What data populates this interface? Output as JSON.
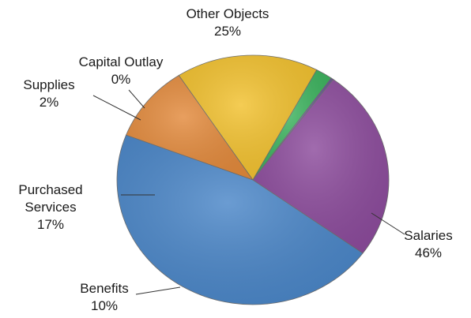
{
  "chart_data": {
    "type": "pie",
    "title": "",
    "slices": [
      {
        "label": "Salaries",
        "pct_label": "46%",
        "value": 46,
        "color": "#4a86c8"
      },
      {
        "label": "Benefits",
        "pct_label": "10%",
        "value": 10,
        "color": "#e38a3c"
      },
      {
        "label": "Purchased Services",
        "label_lines": [
          "Purchased",
          "Services"
        ],
        "pct_label": "17%",
        "value": 17,
        "color": "#f2c12e"
      },
      {
        "label": "Supplies",
        "pct_label": "2%",
        "value": 2,
        "color": "#3cb35e"
      },
      {
        "label": "Capital Outlay",
        "pct_label": "0%",
        "value": 0.3,
        "color": "#6b5a9a"
      },
      {
        "label": "Other Objects",
        "pct_label": "25%",
        "value": 25,
        "color": "#8c4b9c"
      }
    ]
  }
}
